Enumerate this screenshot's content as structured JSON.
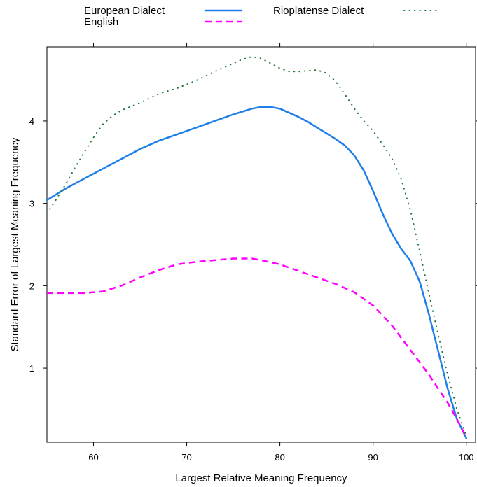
{
  "chart_data": {
    "type": "line",
    "xlabel": "Largest Relative Meaning Frequency",
    "ylabel": "Standard Error of Largest Meaning Frequency",
    "xlim": [
      55,
      101
    ],
    "ylim": [
      0.1,
      4.9
    ],
    "x_ticks": [
      60,
      70,
      80,
      90,
      100
    ],
    "y_ticks": [
      1,
      2,
      3,
      4
    ],
    "grid": false,
    "legend_position": "top",
    "series": [
      {
        "name": "European Dialect",
        "color": "#1f7fe8",
        "style": "solid",
        "x": [
          55,
          57,
          59,
          61,
          63,
          65,
          67,
          69,
          71,
          73,
          75,
          77,
          78,
          79,
          80,
          81,
          82,
          83,
          84,
          85,
          86,
          87,
          88,
          89,
          90,
          91,
          92,
          93,
          94,
          95,
          96,
          97,
          98,
          99,
          100
        ],
        "y": [
          3.04,
          3.18,
          3.3,
          3.42,
          3.54,
          3.66,
          3.76,
          3.84,
          3.92,
          4.0,
          4.08,
          4.15,
          4.17,
          4.17,
          4.15,
          4.1,
          4.05,
          3.99,
          3.92,
          3.85,
          3.78,
          3.7,
          3.58,
          3.4,
          3.15,
          2.88,
          2.64,
          2.45,
          2.3,
          2.05,
          1.65,
          1.2,
          0.75,
          0.38,
          0.15
        ]
      },
      {
        "name": "English",
        "color": "#ff00ff",
        "style": "dashed",
        "x": [
          55,
          57,
          59,
          61,
          63,
          65,
          67,
          69,
          71,
          73,
          75,
          76,
          77,
          78,
          80,
          82,
          84,
          86,
          88,
          90,
          92,
          94,
          96,
          98,
          99,
          100
        ],
        "y": [
          1.91,
          1.91,
          1.91,
          1.93,
          2.0,
          2.1,
          2.19,
          2.26,
          2.29,
          2.31,
          2.33,
          2.33,
          2.33,
          2.31,
          2.26,
          2.18,
          2.1,
          2.02,
          1.92,
          1.76,
          1.52,
          1.22,
          0.92,
          0.58,
          0.38,
          0.16
        ]
      },
      {
        "name": "Rioplatense Dialect",
        "color": "#1e7a3a",
        "style": "dotted",
        "x": [
          55,
          56,
          57,
          58,
          59,
          60,
          61,
          62,
          63,
          65,
          67,
          69,
          71,
          73,
          75,
          76,
          77,
          78,
          79,
          80,
          81,
          82,
          83,
          84,
          85,
          86,
          87,
          88,
          89,
          90,
          91,
          92,
          93,
          94,
          95,
          96,
          97,
          98,
          99,
          100
        ],
        "y": [
          2.88,
          3.05,
          3.23,
          3.43,
          3.62,
          3.8,
          3.96,
          4.06,
          4.13,
          4.22,
          4.33,
          4.4,
          4.49,
          4.6,
          4.7,
          4.75,
          4.78,
          4.76,
          4.7,
          4.64,
          4.6,
          4.6,
          4.61,
          4.62,
          4.58,
          4.48,
          4.32,
          4.15,
          4.0,
          3.88,
          3.72,
          3.55,
          3.3,
          2.92,
          2.42,
          1.9,
          1.4,
          0.92,
          0.5,
          0.18
        ]
      }
    ]
  }
}
